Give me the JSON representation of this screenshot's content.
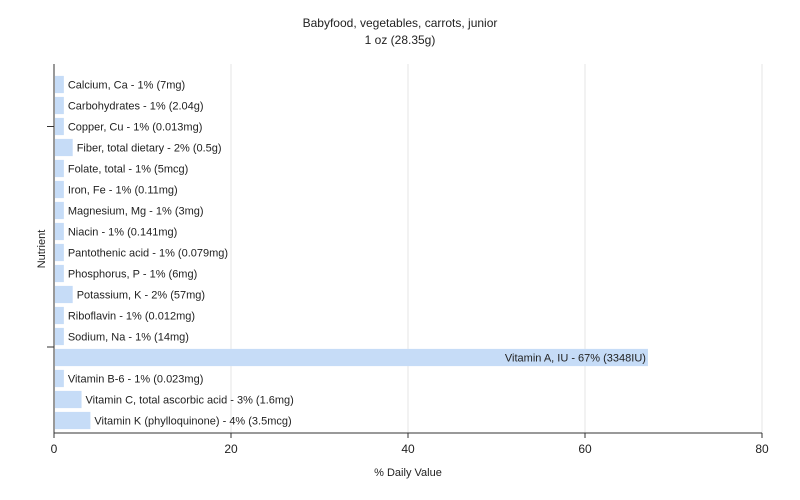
{
  "chart_data": {
    "type": "bar",
    "orientation": "horizontal",
    "title": "Babyfood, vegetables, carrots, junior",
    "subtitle": "1 oz (28.35g)",
    "xlabel": "% Daily Value",
    "ylabel": "Nutrient",
    "xlim": [
      0,
      80
    ],
    "xticks": [
      0,
      20,
      40,
      60,
      80
    ],
    "grid": true,
    "legend": "none",
    "bar_color": "#c6dcf7",
    "categories": [
      "Calcium, Ca",
      "Carbohydrates",
      "Copper, Cu",
      "Fiber, total dietary",
      "Folate, total",
      "Iron, Fe",
      "Magnesium, Mg",
      "Niacin",
      "Pantothenic acid",
      "Phosphorus, P",
      "Potassium, K",
      "Riboflavin",
      "Sodium, Na",
      "Vitamin A, IU",
      "Vitamin B-6",
      "Vitamin C, total ascorbic acid",
      "Vitamin K (phylloquinone)"
    ],
    "values": [
      1,
      1,
      1,
      2,
      1,
      1,
      1,
      1,
      1,
      1,
      2,
      1,
      1,
      67,
      1,
      3,
      4
    ],
    "labels": [
      "Calcium, Ca - 1% (7mg)",
      "Carbohydrates - 1% (2.04g)",
      "Copper, Cu - 1% (0.013mg)",
      "Fiber, total dietary - 2% (0.5g)",
      "Folate, total - 1% (5mcg)",
      "Iron, Fe - 1% (0.11mg)",
      "Magnesium, Mg - 1% (3mg)",
      "Niacin - 1% (0.141mg)",
      "Pantothenic acid - 1% (0.079mg)",
      "Phosphorus, P - 1% (6mg)",
      "Potassium, K - 2% (57mg)",
      "Riboflavin - 1% (0.012mg)",
      "Sodium, Na - 1% (14mg)",
      "Vitamin A, IU - 67% (3348IU)",
      "Vitamin B-6 - 1% (0.023mg)",
      "Vitamin C, total ascorbic acid - 3% (1.6mg)",
      "Vitamin K (phylloquinone) - 4% (3.5mcg)"
    ]
  }
}
